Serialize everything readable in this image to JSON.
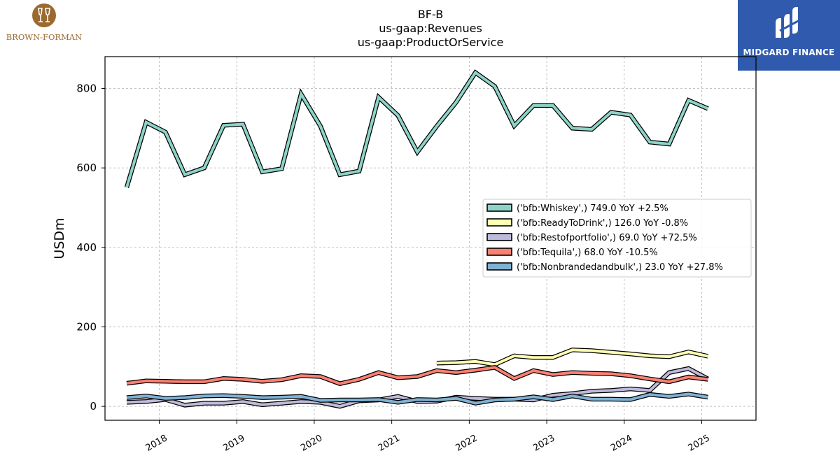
{
  "header": {
    "ticker": "BF-B",
    "concept": "us-gaap:Revenues",
    "axis": "us-gaap:ProductOrService"
  },
  "logos": {
    "left_text": "BROWN-FORMAN",
    "right_text": "MIDGARD FINANCE",
    "left_color": "#9B6A2F",
    "right_bg": "#2F5AAE"
  },
  "chart_data": {
    "type": "line",
    "title": "BF-B\nus-gaap:Revenues\nus-gaap:ProductOrService",
    "ylabel": "USDm",
    "xlabel": "",
    "ylim": [
      -35,
      880
    ],
    "xlim": [
      2017.3,
      2025.7
    ],
    "yticks": [
      0,
      200,
      400,
      600,
      800
    ],
    "xticks": [
      "2018",
      "2019",
      "2020",
      "2021",
      "2022",
      "2023",
      "2024",
      "2025"
    ],
    "grid": true,
    "legend_position": "center-right",
    "series": [
      {
        "name": "('bfb:Whiskey',) 749.0 YoY +2.5%",
        "color": "#8DD3C7",
        "x": [
          2017.58,
          2017.83,
          2018.08,
          2018.33,
          2018.58,
          2018.83,
          2019.08,
          2019.33,
          2019.58,
          2019.83,
          2020.08,
          2020.33,
          2020.58,
          2020.83,
          2021.08,
          2021.33,
          2021.58,
          2021.83,
          2022.08,
          2022.33,
          2022.58,
          2022.83,
          2023.08,
          2023.33,
          2023.58,
          2023.83,
          2024.08,
          2024.33,
          2024.58,
          2024.83,
          2025.08
        ],
        "y": [
          551,
          715,
          690,
          583,
          600,
          707,
          710,
          590,
          598,
          786,
          705,
          583,
          592,
          778,
          732,
          640,
          705,
          765,
          840,
          805,
          706,
          757,
          757,
          700,
          697,
          740,
          733,
          665,
          660,
          770,
          749
        ]
      },
      {
        "name": "('bfb:ReadyToDrink',) 126.0 YoY -0.8%",
        "color": "#FFFFB3",
        "x": [
          2021.58,
          2021.83,
          2022.08,
          2022.33,
          2022.58,
          2022.83,
          2023.08,
          2023.33,
          2023.58,
          2023.83,
          2024.08,
          2024.33,
          2024.58,
          2024.83,
          2025.08
        ],
        "y": [
          109,
          110,
          113,
          105,
          127,
          123,
          123,
          142,
          140,
          136,
          132,
          127,
          125,
          137,
          126
        ]
      },
      {
        "name": "('bfb:Restofportfolio',) 69.0 YoY +72.5%",
        "color": "#BEBADA",
        "x": [
          2017.58,
          2017.83,
          2018.08,
          2018.33,
          2018.58,
          2018.83,
          2019.08,
          2019.33,
          2019.58,
          2019.83,
          2020.08,
          2020.33,
          2020.58,
          2020.83,
          2021.08,
          2021.33,
          2021.58,
          2021.83,
          2022.08,
          2022.33,
          2022.58,
          2022.83,
          2023.08,
          2023.33,
          2023.58,
          2023.83,
          2024.08,
          2024.33,
          2024.58,
          2024.83,
          2025.08
        ],
        "y": [
          10,
          12,
          17,
          3,
          8,
          8,
          12,
          4,
          8,
          12,
          10,
          0,
          14,
          16,
          25,
          12,
          13,
          23,
          20,
          18,
          18,
          16,
          28,
          32,
          38,
          40,
          44,
          40,
          85,
          95,
          69
        ]
      },
      {
        "name": "('bfb:Tequila',) 68.0 YoY -10.5%",
        "color": "#FB8072",
        "x": [
          2017.58,
          2017.83,
          2018.08,
          2018.33,
          2018.58,
          2018.83,
          2019.08,
          2019.33,
          2019.58,
          2019.83,
          2020.08,
          2020.33,
          2020.58,
          2020.83,
          2021.08,
          2021.33,
          2021.58,
          2021.83,
          2022.08,
          2022.33,
          2022.58,
          2022.83,
          2023.08,
          2023.33,
          2023.58,
          2023.83,
          2024.08,
          2024.33,
          2024.58,
          2024.83,
          2025.08
        ],
        "y": [
          58,
          64,
          63,
          62,
          62,
          70,
          68,
          63,
          67,
          77,
          75,
          57,
          68,
          85,
          72,
          75,
          90,
          85,
          91,
          98,
          70,
          90,
          80,
          85,
          83,
          82,
          77,
          69,
          62,
          74,
          68
        ]
      },
      {
        "name": "('bfb:Nonbrandedandbulk',) 23.0 YoY +27.8%",
        "color": "#80B1D3",
        "x": [
          2017.58,
          2017.83,
          2018.08,
          2018.33,
          2018.58,
          2018.83,
          2019.08,
          2019.33,
          2019.58,
          2019.83,
          2020.08,
          2020.33,
          2020.58,
          2020.83,
          2021.08,
          2021.33,
          2021.58,
          2021.83,
          2022.08,
          2022.33,
          2022.58,
          2022.83,
          2023.08,
          2023.33,
          2023.58,
          2023.83,
          2024.08,
          2024.33,
          2024.58,
          2024.83,
          2025.08
        ],
        "y": [
          22,
          26,
          20,
          22,
          26,
          27,
          25,
          22,
          23,
          25,
          15,
          16,
          16,
          17,
          10,
          17,
          16,
          20,
          8,
          16,
          18,
          24,
          17,
          26,
          18,
          18,
          17,
          30,
          25,
          31,
          23
        ]
      }
    ]
  }
}
